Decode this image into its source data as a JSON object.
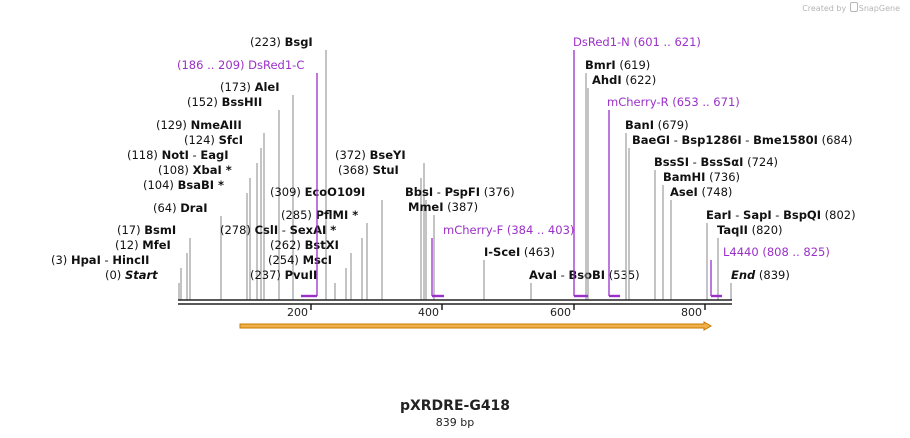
{
  "credit": {
    "text": "Created by",
    "brand": "SnapGene"
  },
  "plasmid": {
    "name": "pXRDRE-G418",
    "length_label": "839 bp",
    "length": 839
  },
  "colors": {
    "primer": "#9b30c8",
    "line": "#8a8a8a",
    "backbone": "#222222",
    "arrow_fill": "#f0b04a",
    "arrow_edge": "#c77800"
  },
  "ticks": [
    {
      "pos": 200,
      "label": "200"
    },
    {
      "pos": 400,
      "label": "400"
    },
    {
      "pos": 600,
      "label": "600"
    },
    {
      "pos": 800,
      "label": "800"
    }
  ],
  "enzymes": [
    {
      "pos": "(223)",
      "name": "BsgI",
      "site": 223
    },
    {
      "pos": "(173)",
      "name": "AleI",
      "site": 173
    },
    {
      "pos": "(152)",
      "name": "BssHII",
      "site": 152
    },
    {
      "pos": "(129)",
      "name": "NmeAIII",
      "site": 129
    },
    {
      "pos": "(124)",
      "name": "SfcI",
      "site": 124
    },
    {
      "pos": "(118)",
      "name": "NotI",
      "name2": "EagI",
      "site": 118
    },
    {
      "pos": "(108)",
      "name": "XbaI *",
      "site": 108
    },
    {
      "pos": "(104)",
      "name": "BsaBI *",
      "site": 104
    },
    {
      "pos": "(64)",
      "name": "DraI",
      "site": 64
    },
    {
      "pos": "(17)",
      "name": "BsmI",
      "site": 17
    },
    {
      "pos": "(12)",
      "name": "MfeI",
      "site": 12
    },
    {
      "pos": "(3)",
      "name": "HpaI",
      "name2": "HincII",
      "site": 3
    },
    {
      "pos": "(0)",
      "name": "Start",
      "site": 0,
      "italic": true
    },
    {
      "pos": "(309)",
      "name": "EcoO109I",
      "site": 309
    },
    {
      "pos": "(285)",
      "name": "PflMI *",
      "site": 285
    },
    {
      "pos": "(278)",
      "name": "CslI",
      "name2": "SexAI *",
      "site": 278
    },
    {
      "pos": "(262)",
      "name": "BstXI",
      "site": 262
    },
    {
      "pos": "(254)",
      "name": "MscI",
      "site": 254
    },
    {
      "pos": "(237)",
      "name": "PvuII",
      "site": 237
    },
    {
      "pos": "(372)",
      "name": "BseYI",
      "site": 372
    },
    {
      "pos": "(368)",
      "name": "StuI",
      "site": 368
    },
    {
      "pos": "(376)",
      "name": "BbsI",
      "name2": "PspFI",
      "site": 376
    },
    {
      "pos": "(387)",
      "name": "MmeI",
      "site": 387
    },
    {
      "pos": "(463)",
      "name": "I-SceI",
      "site": 463
    },
    {
      "pos": "(535)",
      "name": "AvaI",
      "name2": "BsoBI",
      "site": 535
    },
    {
      "pos": "(619)",
      "name": "BmrI",
      "site": 619
    },
    {
      "pos": "(622)",
      "name": "AhdI",
      "site": 622
    },
    {
      "pos": "(679)",
      "name": "BanI",
      "site": 679
    },
    {
      "pos": "(684)",
      "name": "BaeGI",
      "name2": "Bsp1286I",
      "name3": "Bme1580I",
      "site": 684
    },
    {
      "pos": "(724)",
      "name": "BssSI",
      "name2": "BssSαI",
      "site": 724
    },
    {
      "pos": "(736)",
      "name": "BamHI",
      "site": 736
    },
    {
      "pos": "(748)",
      "name": "AseI",
      "site": 748
    },
    {
      "pos": "(802)",
      "name": "EarI",
      "name2": "SapI",
      "name3": "BspQI",
      "site": 802
    },
    {
      "pos": "(820)",
      "name": "TaqII",
      "site": 820
    },
    {
      "pos": "(839)",
      "name": "End",
      "site": 839,
      "italic": true
    }
  ],
  "primers": [
    {
      "name": "DsRed1-C",
      "range": "(186 .. 209)",
      "start": 186,
      "end": 209
    },
    {
      "name": "mCherry-F",
      "range": "(384 .. 403)",
      "start": 384,
      "end": 403
    },
    {
      "name": "DsRed1-N",
      "range": "(601 .. 621)",
      "start": 601,
      "end": 621
    },
    {
      "name": "mCherry-R",
      "range": "(653 .. 671)",
      "start": 653,
      "end": 671
    },
    {
      "name": "L4440",
      "range": "(808 .. 825)",
      "start": 808,
      "end": 825
    }
  ],
  "feature": {
    "start": 93,
    "end": 809
  }
}
